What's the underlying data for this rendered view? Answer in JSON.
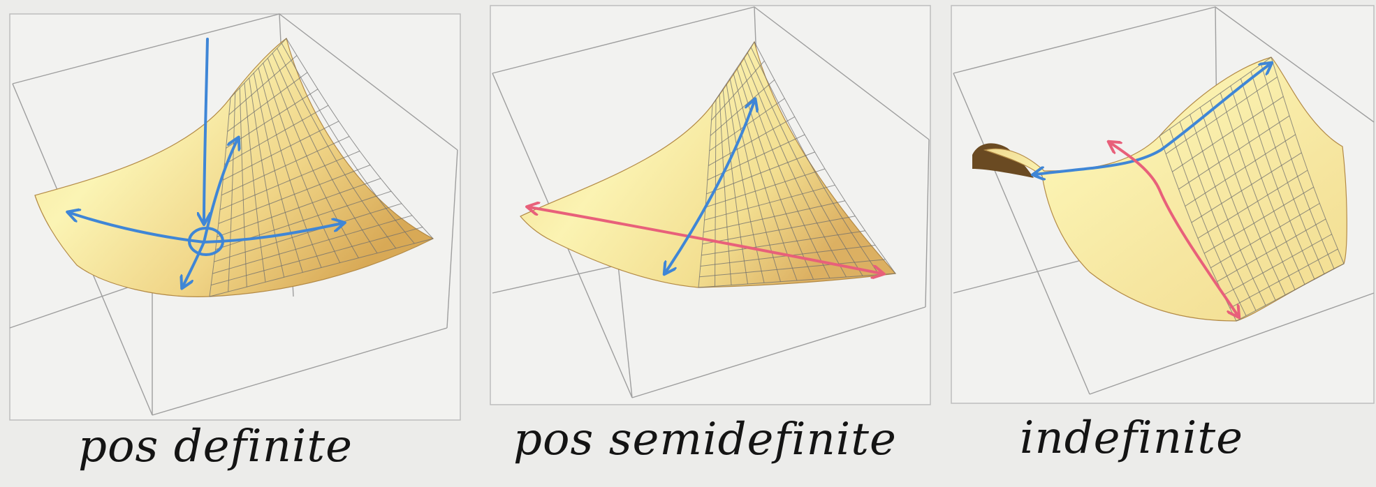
{
  "panels": [
    {
      "label": "pos definite"
    },
    {
      "label": "pos semidefinite"
    },
    {
      "label": "indefinite"
    }
  ],
  "colors": {
    "background": "#ececea",
    "panel": "#f2f2f0",
    "box_line": "#9a9a9a",
    "mesh_line": "#6e6e6e",
    "surface_light": "#fbf4b4",
    "surface_mid": "#f2dc8a",
    "surface_dark": "#d9ad58",
    "underside": "#6a4a22",
    "pen_blue": "#3f86d6",
    "pen_red": "#e8607a"
  },
  "icons": [
    "eigen-direction-arrow-icon",
    "minimum-point-circle-icon"
  ]
}
